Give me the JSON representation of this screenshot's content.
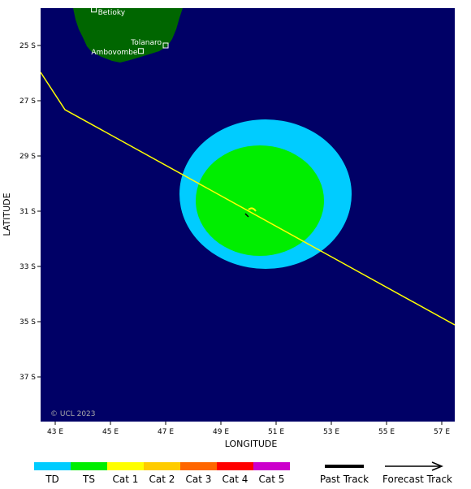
{
  "axes": {
    "x_label": "LONGITUDE",
    "y_label": "LATITUDE",
    "x_ticks": [
      "43 E",
      "45 E",
      "47 E",
      "49 E",
      "51 E",
      "53 E",
      "55 E",
      "57 E"
    ],
    "y_ticks": [
      "25 S",
      "27 S",
      "29 S",
      "31 S",
      "33 S",
      "35 S",
      "37 S"
    ]
  },
  "places": [
    {
      "name": "Betioky",
      "lon": 44.4,
      "lat": 23.7
    },
    {
      "name": "Tolanaro",
      "lon": 47.0,
      "lat": 25.0
    },
    {
      "name": "Ambovombe",
      "lon": 46.1,
      "lat": 25.2
    }
  ],
  "copyright": "© UCL 2023",
  "legend": [
    {
      "label": "TD",
      "color": "#00ccff"
    },
    {
      "label": "TS",
      "color": "#00ee00"
    },
    {
      "label": "Cat 1",
      "color": "#ffff00"
    },
    {
      "label": "Cat 2",
      "color": "#ffcc00"
    },
    {
      "label": "Cat 3",
      "color": "#ff6600"
    },
    {
      "label": "Cat 4",
      "color": "#ff0000"
    },
    {
      "label": "Cat 5",
      "color": "#cc00cc"
    }
  ],
  "track_legend": {
    "past": "Past Track",
    "forecast": "Forecast Track"
  },
  "colors": {
    "ocean": "#000066",
    "land": "#006600",
    "track": "#ffff00"
  }
}
